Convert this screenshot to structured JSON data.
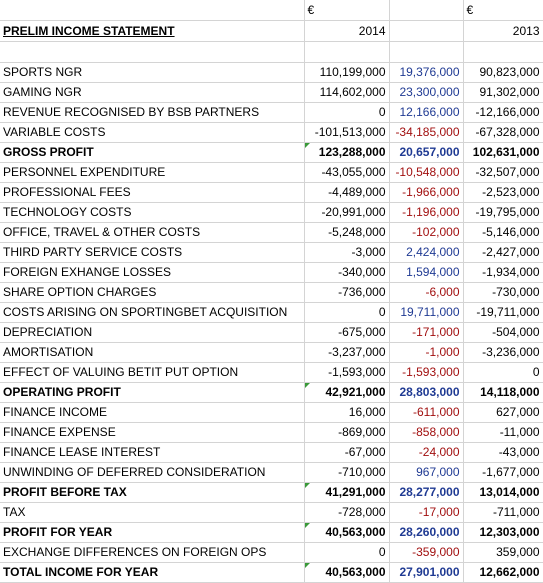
{
  "header": {
    "currency_2014": "€",
    "currency_2013": "€",
    "title": "PRELIM INCOME STATEMENT",
    "year_2014": "2014",
    "year_2013": "2013"
  },
  "rows": [
    {
      "label": "SPORTS NGR",
      "v2014": "110,199,000",
      "diff": "19,376,000",
      "v2013": "90,823,000"
    },
    {
      "label": "GAMING NGR",
      "v2014": "114,602,000",
      "diff": "23,300,000",
      "v2013": "91,302,000"
    },
    {
      "label": "REVENUE RECOGNISED BY BSB PARTNERS",
      "v2014": "0",
      "diff": "12,166,000",
      "v2013": "-12,166,000"
    },
    {
      "label": "VARIABLE COSTS",
      "v2014": "-101,513,000",
      "diff": "-34,185,000",
      "v2013": "-67,328,000"
    },
    {
      "label": "GROSS PROFIT",
      "v2014": "123,288,000",
      "diff": "20,657,000",
      "v2013": "102,631,000"
    },
    {
      "label": "PERSONNEL EXPENDITURE",
      "v2014": "-43,055,000",
      "diff": "-10,548,000",
      "v2013": "-32,507,000"
    },
    {
      "label": "PROFESSIONAL FEES",
      "v2014": "-4,489,000",
      "diff": "-1,966,000",
      "v2013": "-2,523,000"
    },
    {
      "label": "TECHNOLOGY COSTS",
      "v2014": "-20,991,000",
      "diff": "-1,196,000",
      "v2013": "-19,795,000"
    },
    {
      "label": "OFFICE, TRAVEL & OTHER COSTS",
      "v2014": "-5,248,000",
      "diff": "-102,000",
      "v2013": "-5,146,000"
    },
    {
      "label": "THIRD PARTY SERVICE COSTS",
      "v2014": "-3,000",
      "diff": "2,424,000",
      "v2013": "-2,427,000"
    },
    {
      "label": "FOREIGN EXHANGE LOSSES",
      "v2014": "-340,000",
      "diff": "1,594,000",
      "v2013": "-1,934,000"
    },
    {
      "label": "SHARE OPTION CHARGES",
      "v2014": "-736,000",
      "diff": "-6,000",
      "v2013": "-730,000"
    },
    {
      "label": "COSTS ARISING ON SPORTINGBET ACQUISITION",
      "v2014": "0",
      "diff": "19,711,000",
      "v2013": "-19,711,000"
    },
    {
      "label": "DEPRECIATION",
      "v2014": "-675,000",
      "diff": "-171,000",
      "v2013": "-504,000"
    },
    {
      "label": "AMORTISATION",
      "v2014": "-3,237,000",
      "diff": "-1,000",
      "v2013": "-3,236,000"
    },
    {
      "label": "EFFECT OF VALUING BETIT PUT OPTION",
      "v2014": "-1,593,000",
      "diff": "-1,593,000",
      "v2013": "0"
    },
    {
      "label": "OPERATING PROFIT",
      "v2014": "42,921,000",
      "diff": "28,803,000",
      "v2013": "14,118,000"
    },
    {
      "label": "FINANCE INCOME",
      "v2014": "16,000",
      "diff": "-611,000",
      "v2013": "627,000"
    },
    {
      "label": "FINANCE EXPENSE",
      "v2014": "-869,000",
      "diff": "-858,000",
      "v2013": "-11,000"
    },
    {
      "label": "FINANCE LEASE INTEREST",
      "v2014": "-67,000",
      "diff": "-24,000",
      "v2013": "-43,000"
    },
    {
      "label": "UNWINDING OF DEFERRED CONSIDERATION",
      "v2014": "-710,000",
      "diff": "967,000",
      "v2013": "-1,677,000"
    },
    {
      "label": "PROFIT BEFORE TAX",
      "v2014": "41,291,000",
      "diff": "28,277,000",
      "v2013": "13,014,000"
    },
    {
      "label": "TAX",
      "v2014": "-728,000",
      "diff": "-17,000",
      "v2013": "-711,000"
    },
    {
      "label": "PROFIT FOR YEAR",
      "v2014": "40,563,000",
      "diff": "28,260,000",
      "v2013": "12,303,000"
    },
    {
      "label": "EXCHANGE DIFFERENCES ON FOREIGN OPS",
      "v2014": "0",
      "diff": "-359,000",
      "v2013": "359,000"
    },
    {
      "label": "TOTAL INCOME FOR YEAR",
      "v2014": "40,563,000",
      "diff": "27,901,000",
      "v2013": "12,662,000"
    }
  ],
  "colors": {
    "positive_diff": "#1f3a93",
    "negative_diff": "#a10f0f",
    "comment_marker": "#3a9a3a",
    "gridline": "#d4d4d4"
  }
}
